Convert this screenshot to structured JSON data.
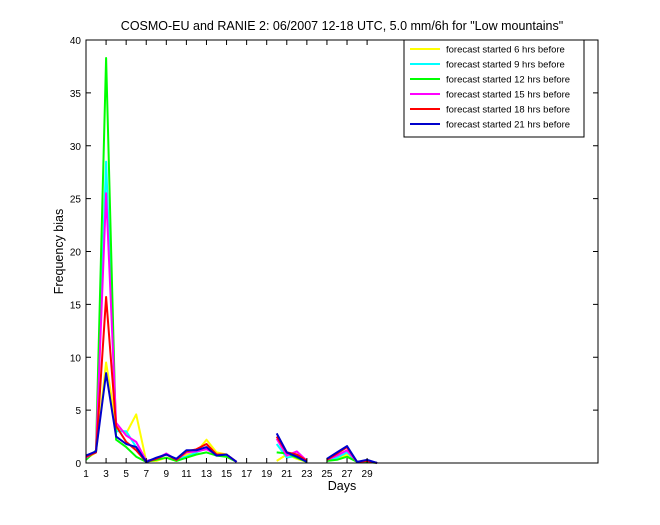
{
  "chart_data": {
    "type": "line",
    "title": "COSMO-EU and RANIE 2: 06/2007 12-18 UTC, 5.0 mm/6h for \"Low mountains\"",
    "xlabel": "Days",
    "ylabel": "Frequency bias",
    "xlim": [
      1,
      52
    ],
    "ylim": [
      0,
      40
    ],
    "xticks": [
      1,
      3,
      5,
      7,
      9,
      11,
      13,
      15,
      17,
      19,
      21,
      23,
      25,
      27,
      29
    ],
    "yticks": [
      0,
      5,
      10,
      15,
      20,
      25,
      30,
      35,
      40
    ],
    "grid": false,
    "legend_position": "top-right",
    "series": [
      {
        "name": "forecast started 6 hrs before",
        "color": "#ffff00",
        "points": [
          [
            1,
            0.4
          ],
          [
            2,
            1.0
          ],
          [
            3,
            9.5
          ],
          [
            4,
            3.5
          ],
          [
            5,
            2.8
          ],
          [
            6,
            4.6
          ],
          [
            7,
            0.2
          ],
          [
            8,
            0.2
          ],
          [
            9,
            0.5
          ],
          [
            10,
            0.2
          ],
          [
            11,
            0.8
          ],
          [
            12,
            1.0
          ],
          [
            13,
            2.2
          ],
          [
            14,
            1.0
          ],
          [
            15,
            0.8
          ],
          [
            16,
            0.1
          ],
          null,
          null,
          null,
          [
            20,
            0.2
          ],
          [
            21,
            0.8
          ],
          [
            22,
            0.4
          ],
          [
            23,
            0.1
          ],
          null,
          [
            25,
            0.2
          ],
          [
            26,
            0.4
          ],
          [
            27,
            0.8
          ],
          [
            28,
            0.1
          ],
          [
            29,
            0.1
          ],
          [
            30,
            0.0
          ]
        ]
      },
      {
        "name": "forecast started 9 hrs before",
        "color": "#00ffff",
        "points": [
          [
            1,
            0.6
          ],
          [
            2,
            1.0
          ],
          [
            3,
            28.5
          ],
          [
            4,
            3.0
          ],
          [
            5,
            3.0
          ],
          [
            6,
            1.5
          ],
          [
            7,
            0.2
          ],
          [
            8,
            0.4
          ],
          [
            9,
            0.8
          ],
          [
            10,
            0.4
          ],
          [
            11,
            0.6
          ],
          [
            12,
            1.0
          ],
          [
            13,
            1.4
          ],
          [
            14,
            0.8
          ],
          [
            15,
            0.7
          ],
          [
            16,
            0.1
          ],
          null,
          null,
          null,
          [
            20,
            1.8
          ],
          [
            21,
            0.5
          ],
          [
            22,
            0.7
          ],
          [
            23,
            0.1
          ],
          null,
          [
            25,
            0.2
          ],
          [
            26,
            0.5
          ],
          [
            27,
            1.0
          ],
          [
            28,
            0.1
          ],
          [
            29,
            0.2
          ],
          [
            30,
            0.0
          ]
        ]
      },
      {
        "name": "forecast started 12 hrs before",
        "color": "#00ff00",
        "points": [
          [
            1,
            0.3
          ],
          [
            2,
            1.2
          ],
          [
            3,
            38.3
          ],
          [
            4,
            2.2
          ],
          [
            5,
            1.5
          ],
          [
            6,
            0.6
          ],
          [
            7,
            0.1
          ],
          [
            8,
            0.3
          ],
          [
            9,
            0.5
          ],
          [
            10,
            0.2
          ],
          [
            11,
            0.5
          ],
          [
            12,
            0.8
          ],
          [
            13,
            1.0
          ],
          [
            14,
            0.7
          ],
          [
            15,
            0.6
          ],
          [
            16,
            0.1
          ],
          null,
          null,
          null,
          [
            20,
            1.0
          ],
          [
            21,
            0.9
          ],
          [
            22,
            0.5
          ],
          [
            23,
            0.1
          ],
          null,
          [
            25,
            0.2
          ],
          [
            26,
            0.3
          ],
          [
            27,
            0.6
          ],
          [
            28,
            0.1
          ],
          [
            29,
            0.1
          ],
          [
            30,
            0.0
          ]
        ]
      },
      {
        "name": "forecast started 15 hrs before",
        "color": "#ff00ff",
        "points": [
          [
            1,
            0.5
          ],
          [
            2,
            1.1
          ],
          [
            3,
            25.5
          ],
          [
            4,
            3.8
          ],
          [
            5,
            2.6
          ],
          [
            6,
            2.0
          ],
          [
            7,
            0.2
          ],
          [
            8,
            0.4
          ],
          [
            9,
            0.9
          ],
          [
            10,
            0.3
          ],
          [
            11,
            1.0
          ],
          [
            12,
            1.1
          ],
          [
            13,
            1.3
          ],
          [
            14,
            0.8
          ],
          [
            15,
            0.8
          ],
          [
            16,
            0.1
          ],
          null,
          null,
          null,
          [
            20,
            2.3
          ],
          [
            21,
            0.7
          ],
          [
            22,
            1.1
          ],
          [
            23,
            0.2
          ],
          null,
          [
            25,
            0.3
          ],
          [
            26,
            0.7
          ],
          [
            27,
            1.2
          ],
          [
            28,
            0.1
          ],
          [
            29,
            0.2
          ],
          [
            30,
            0.0
          ]
        ]
      },
      {
        "name": "forecast started 18 hrs before",
        "color": "#ff0000",
        "points": [
          [
            1,
            0.6
          ],
          [
            2,
            1.0
          ],
          [
            3,
            15.7
          ],
          [
            4,
            3.5
          ],
          [
            5,
            2.0
          ],
          [
            6,
            1.2
          ],
          [
            7,
            0.1
          ],
          [
            8,
            0.4
          ],
          [
            9,
            0.8
          ],
          [
            10,
            0.3
          ],
          [
            11,
            1.1
          ],
          [
            12,
            1.3
          ],
          [
            13,
            1.8
          ],
          [
            14,
            0.8
          ],
          [
            15,
            0.8
          ],
          [
            16,
            0.1
          ],
          null,
          null,
          null,
          [
            20,
            2.5
          ],
          [
            21,
            1.0
          ],
          [
            22,
            0.8
          ],
          [
            23,
            0.2
          ],
          null,
          [
            25,
            0.3
          ],
          [
            26,
            0.9
          ],
          [
            27,
            1.5
          ],
          [
            28,
            0.1
          ],
          [
            29,
            0.2
          ],
          [
            30,
            0.0
          ]
        ]
      },
      {
        "name": "forecast started 21 hrs before",
        "color": "#0000cc",
        "points": [
          [
            1,
            0.7
          ],
          [
            2,
            1.1
          ],
          [
            3,
            8.5
          ],
          [
            4,
            2.5
          ],
          [
            5,
            1.8
          ],
          [
            6,
            1.5
          ],
          [
            7,
            0.1
          ],
          [
            8,
            0.5
          ],
          [
            9,
            0.8
          ],
          [
            10,
            0.4
          ],
          [
            11,
            1.2
          ],
          [
            12,
            1.2
          ],
          [
            13,
            1.5
          ],
          [
            14,
            0.7
          ],
          [
            15,
            0.8
          ],
          [
            16,
            0.1
          ],
          null,
          null,
          null,
          [
            20,
            2.8
          ],
          [
            21,
            1.0
          ],
          [
            22,
            0.6
          ],
          [
            23,
            0.1
          ],
          null,
          [
            25,
            0.4
          ],
          [
            26,
            1.0
          ],
          [
            27,
            1.6
          ],
          [
            28,
            0.1
          ],
          [
            29,
            0.3
          ],
          [
            30,
            0.0
          ]
        ]
      }
    ]
  }
}
